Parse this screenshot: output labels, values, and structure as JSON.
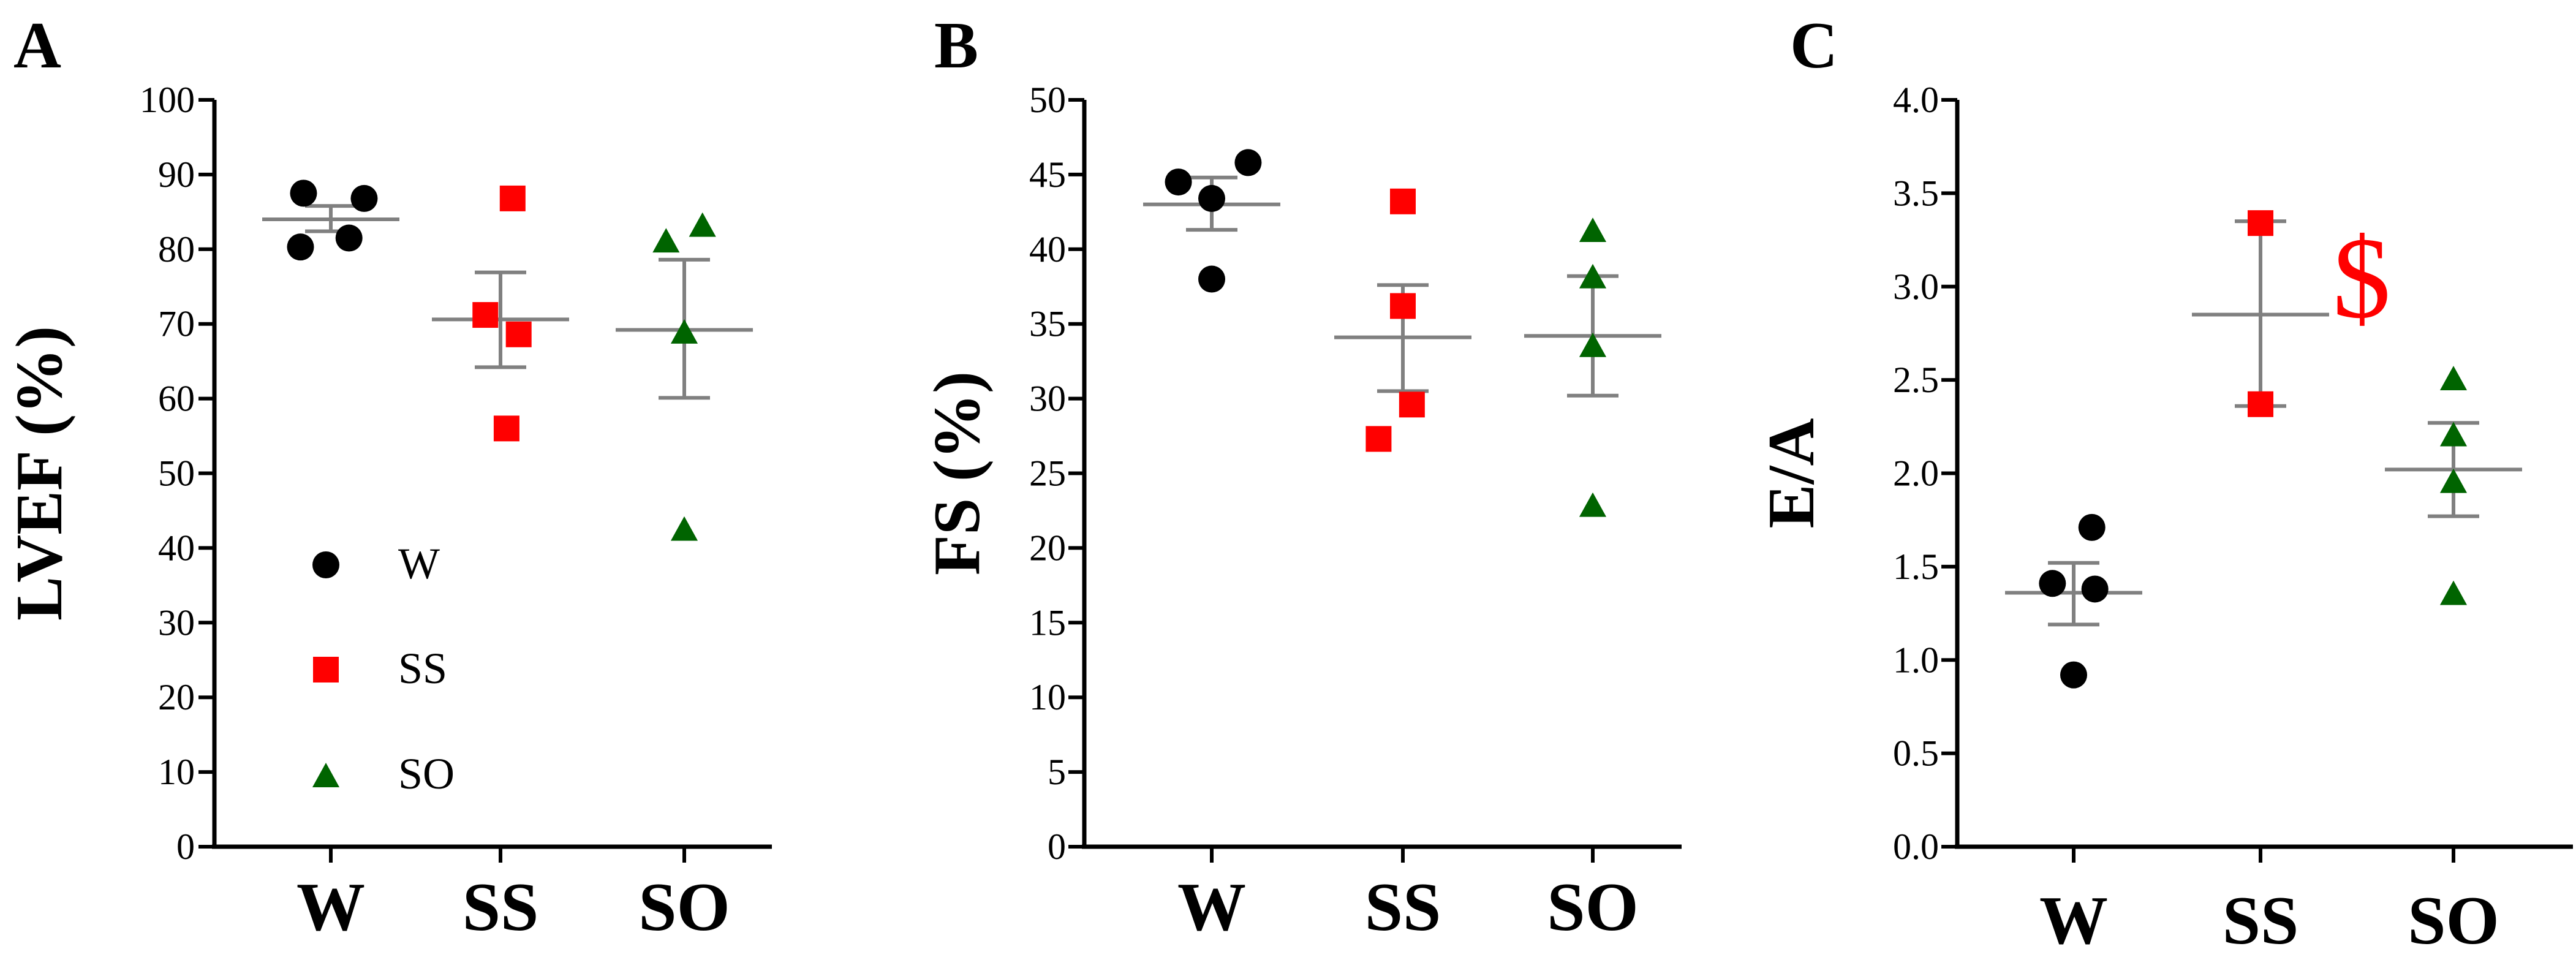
{
  "colors": {
    "W": "#000000",
    "SS": "#ff0000",
    "SO": "#006400",
    "bars": "#808080",
    "axis": "#000000",
    "annotation": "#ff0000"
  },
  "chart_data": [
    {
      "type": "scatter",
      "panel_label": "A",
      "ylabel": "LVEF (%)",
      "ylim": [
        0,
        100
      ],
      "yticks": [
        "0",
        "10",
        "20",
        "30",
        "40",
        "50",
        "60",
        "70",
        "80",
        "90",
        "100"
      ],
      "categories": [
        "W",
        "SS",
        "SO"
      ],
      "grid": false,
      "legend": {
        "placement": "lower-left",
        "entries": [
          {
            "name": "W",
            "marker": "circle"
          },
          {
            "name": "SS",
            "marker": "square"
          },
          {
            "name": "SO",
            "marker": "triangle"
          }
        ]
      },
      "series": [
        {
          "name": "W",
          "marker": "circle",
          "points": [
            {
              "dx": -0.45,
              "y": 87.5
            },
            {
              "dx": 0.55,
              "y": 86.8
            },
            {
              "dx": -0.5,
              "y": 80.3
            },
            {
              "dx": 0.3,
              "y": 81.5
            }
          ],
          "mean": 84.0,
          "err_low": 82.4,
          "err_high": 85.8
        },
        {
          "name": "SS",
          "marker": "square",
          "points": [
            {
              "dx": 0.2,
              "y": 86.8
            },
            {
              "dx": -0.25,
              "y": 71.2
            },
            {
              "dx": 0.3,
              "y": 68.6
            },
            {
              "dx": 0.1,
              "y": 56.0
            }
          ],
          "mean": 70.6,
          "err_low": 64.2,
          "err_high": 76.9
        },
        {
          "name": "SO",
          "marker": "triangle",
          "points": [
            {
              "dx": -0.3,
              "y": 81.2
            },
            {
              "dx": 0.3,
              "y": 83.3
            },
            {
              "dx": 0.0,
              "y": 69.0
            },
            {
              "dx": 0.0,
              "y": 42.6
            }
          ],
          "mean": 69.2,
          "err_low": 60.1,
          "err_high": 78.6
        }
      ],
      "annotations": []
    },
    {
      "type": "scatter",
      "panel_label": "B",
      "ylabel": "FS (%)",
      "ylim": [
        0,
        50
      ],
      "yticks": [
        "0",
        "5",
        "10",
        "15",
        "20",
        "25",
        "30",
        "35",
        "40",
        "45",
        "50"
      ],
      "categories": [
        "W",
        "SS",
        "SO"
      ],
      "grid": false,
      "series": [
        {
          "name": "W",
          "marker": "circle",
          "points": [
            {
              "dx": -0.55,
              "y": 44.5
            },
            {
              "dx": 0.6,
              "y": 45.8
            },
            {
              "dx": 0.0,
              "y": 43.4
            },
            {
              "dx": 0.0,
              "y": 38.0
            }
          ],
          "mean": 43.0,
          "err_low": 41.3,
          "err_high": 44.8
        },
        {
          "name": "SS",
          "marker": "square",
          "points": [
            {
              "dx": 0.0,
              "y": 43.2
            },
            {
              "dx": 0.0,
              "y": 36.2
            },
            {
              "dx": 0.15,
              "y": 29.6
            },
            {
              "dx": -0.4,
              "y": 27.3
            }
          ],
          "mean": 34.1,
          "err_low": 30.5,
          "err_high": 37.6
        },
        {
          "name": "SO",
          "marker": "triangle",
          "points": [
            {
              "dx": 0.0,
              "y": 41.3
            },
            {
              "dx": 0.0,
              "y": 38.2
            },
            {
              "dx": 0.0,
              "y": 33.6
            },
            {
              "dx": 0.0,
              "y": 22.9
            }
          ],
          "mean": 34.2,
          "err_low": 30.2,
          "err_high": 38.2
        }
      ],
      "annotations": []
    },
    {
      "type": "scatter",
      "panel_label": "C",
      "ylabel": "E/A",
      "ylim": [
        0,
        4
      ],
      "yticks": [
        "0.0",
        "0.5",
        "1.0",
        "1.5",
        "2.0",
        "2.5",
        "3.0",
        "3.5",
        "4.0"
      ],
      "categories": [
        "W",
        "SS",
        "SO"
      ],
      "grid": false,
      "series": [
        {
          "name": "W",
          "marker": "circle",
          "points": [
            {
              "dx": 0.3,
              "y": 1.71
            },
            {
              "dx": -0.35,
              "y": 1.41
            },
            {
              "dx": 0.35,
              "y": 1.38
            },
            {
              "dx": 0.0,
              "y": 0.92
            }
          ],
          "mean": 1.36,
          "err_low": 1.19,
          "err_high": 1.52
        },
        {
          "name": "SS",
          "marker": "square",
          "points": [
            {
              "dx": 0.0,
              "y": 3.34
            },
            {
              "dx": 0.0,
              "y": 2.37
            }
          ],
          "mean": 2.85,
          "err_low": 2.36,
          "err_high": 3.35
        },
        {
          "name": "SO",
          "marker": "triangle",
          "points": [
            {
              "dx": 0.0,
              "y": 2.51
            },
            {
              "dx": 0.0,
              "y": 2.21
            },
            {
              "dx": 0.0,
              "y": 1.96
            },
            {
              "dx": 0.0,
              "y": 1.36
            }
          ],
          "mean": 2.02,
          "err_low": 1.77,
          "err_high": 2.27
        }
      ],
      "annotations": [
        {
          "text": "$",
          "category": "SS"
        }
      ]
    }
  ]
}
